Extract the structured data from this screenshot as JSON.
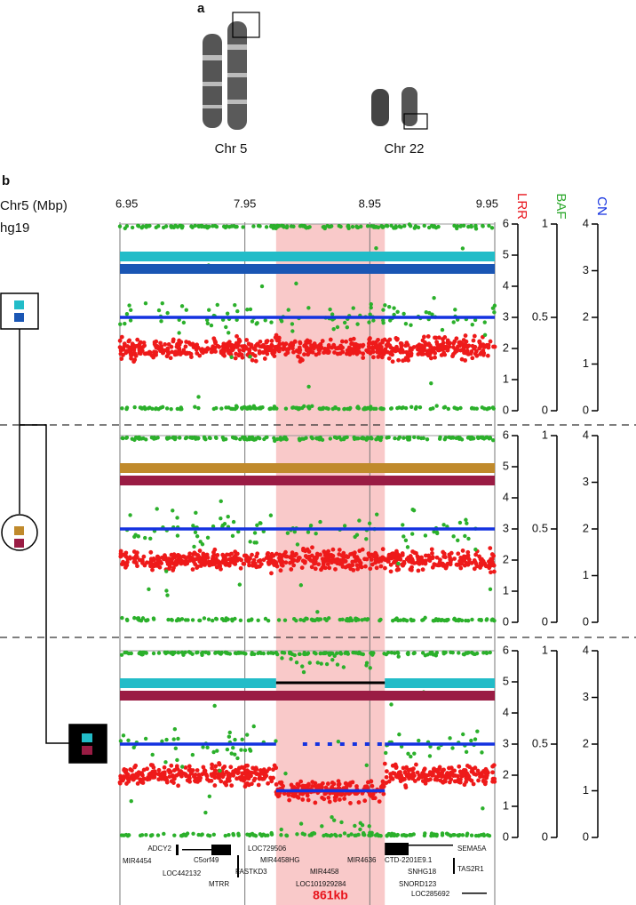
{
  "panel_a": {
    "label": "a",
    "chromosomes": [
      "Chr 5",
      "Chr 22"
    ]
  },
  "panel_b": {
    "label": "b",
    "x_axis_label": "Chr5 (Mbp)",
    "assembly": "hg19",
    "xlim": [
      6.95,
      9.95
    ],
    "xticks": [
      6.95,
      7.95,
      8.95,
      9.95
    ],
    "axes": [
      {
        "name": "LRR",
        "color": "#e8141c",
        "ylim": [
          0,
          6
        ],
        "ticks": [
          0,
          1,
          2,
          3,
          4,
          5,
          6
        ]
      },
      {
        "name": "BAF",
        "color": "#2ca82c",
        "ylim": [
          0,
          1
        ],
        "ticks": [
          0,
          0.5,
          1
        ]
      },
      {
        "name": "CN",
        "color": "#1432e0",
        "ylim": [
          0,
          4
        ],
        "ticks": [
          0,
          1,
          2,
          3,
          4
        ]
      }
    ],
    "deletion": {
      "start": 8.2,
      "end": 9.07,
      "label": "861kb",
      "color": "#f9c9c9"
    },
    "tracks": [
      {
        "haplotypes": [
          {
            "color": "#22bcc8",
            "segments": [
              [
                6.95,
                9.95
              ]
            ]
          },
          {
            "color": "#1a56b4",
            "segments": [
              [
                6.95,
                9.95
              ]
            ]
          }
        ],
        "cn_segments": [
          {
            "start": 6.95,
            "end": 9.95,
            "cn": 2
          }
        ]
      },
      {
        "haplotypes": [
          {
            "color": "#c08a2c",
            "segments": [
              [
                6.95,
                9.95
              ]
            ]
          },
          {
            "color": "#9a1c44",
            "segments": [
              [
                6.95,
                9.95
              ]
            ]
          }
        ],
        "cn_segments": [
          {
            "start": 6.95,
            "end": 9.95,
            "cn": 2
          }
        ]
      },
      {
        "haplotypes": [
          {
            "color": "#22bcc8",
            "segments": [
              [
                6.95,
                8.2
              ],
              [
                9.07,
                9.95
              ]
            ]
          },
          {
            "color": "#9a1c44",
            "segments": [
              [
                6.95,
                9.95
              ]
            ]
          }
        ],
        "cn_segments": [
          {
            "start": 6.95,
            "end": 8.2,
            "cn": 2
          },
          {
            "start": 8.2,
            "end": 9.07,
            "cn": 1
          },
          {
            "start": 9.07,
            "end": 9.95,
            "cn": 2
          }
        ]
      }
    ],
    "genes": [
      "ADCY2",
      "MIR4454",
      "C5orf49",
      "LOC442132",
      "FASTKD3",
      "MTRR",
      "LOC729506",
      "MIR4458HG",
      "MIR4458",
      "LOC101929284",
      "MIR4636",
      "CTD-2201E9.1",
      "SNHG18",
      "SNORD123",
      "SEMA5A",
      "TAS2R1",
      "LOC285692"
    ]
  }
}
